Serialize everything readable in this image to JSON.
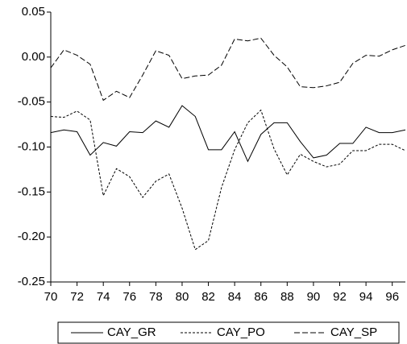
{
  "chart_data": {
    "type": "line",
    "x": [
      70,
      71,
      72,
      73,
      74,
      75,
      76,
      77,
      78,
      79,
      80,
      81,
      82,
      83,
      84,
      85,
      86,
      87,
      88,
      89,
      90,
      91,
      92,
      93,
      94,
      95,
      96,
      97
    ],
    "series": [
      {
        "name": "CAY_GR",
        "color": "#000000",
        "style": "solid",
        "values": [
          -0.084,
          -0.081,
          -0.083,
          -0.109,
          -0.095,
          -0.099,
          -0.083,
          -0.084,
          -0.071,
          -0.078,
          -0.054,
          -0.066,
          -0.103,
          -0.103,
          -0.083,
          -0.116,
          -0.086,
          -0.073,
          -0.073,
          -0.094,
          -0.112,
          -0.109,
          -0.096,
          -0.096,
          -0.078,
          -0.084,
          -0.084,
          -0.081
        ]
      },
      {
        "name": "CAY_PO",
        "color": "#000000",
        "style": "short-dash",
        "values": [
          -0.066,
          -0.067,
          -0.06,
          -0.07,
          -0.154,
          -0.124,
          -0.133,
          -0.156,
          -0.138,
          -0.13,
          -0.168,
          -0.214,
          -0.204,
          -0.145,
          -0.103,
          -0.073,
          -0.059,
          -0.102,
          -0.131,
          -0.108,
          -0.116,
          -0.122,
          -0.119,
          -0.104,
          -0.104,
          -0.097,
          -0.097,
          -0.104
        ]
      },
      {
        "name": "CAY_SP",
        "color": "#000000",
        "style": "long-dash",
        "values": [
          -0.012,
          0.008,
          0.002,
          -0.008,
          -0.048,
          -0.038,
          -0.045,
          -0.02,
          0.007,
          0.002,
          -0.024,
          -0.021,
          -0.02,
          -0.009,
          0.02,
          0.018,
          0.021,
          0.002,
          -0.011,
          -0.033,
          -0.034,
          -0.032,
          -0.028,
          -0.007,
          0.002,
          0.001,
          0.008,
          0.013
        ]
      }
    ],
    "xlim": [
      70,
      97
    ],
    "xticks": [
      70,
      72,
      74,
      76,
      78,
      80,
      82,
      84,
      86,
      88,
      90,
      92,
      94,
      96
    ],
    "ylim": [
      -0.25,
      0.05
    ],
    "yticks": [
      {
        "value": -0.25,
        "label": "-0.25"
      },
      {
        "value": -0.2,
        "label": "-0.20"
      },
      {
        "value": -0.15,
        "label": "-0.15"
      },
      {
        "value": -0.1,
        "label": "-0.10"
      },
      {
        "value": -0.05,
        "label": "-0.05"
      },
      {
        "value": 0,
        "label": "0.00"
      },
      {
        "value": 0.05,
        "label": "0.05"
      }
    ],
    "grid": false,
    "legend": "bottom"
  }
}
